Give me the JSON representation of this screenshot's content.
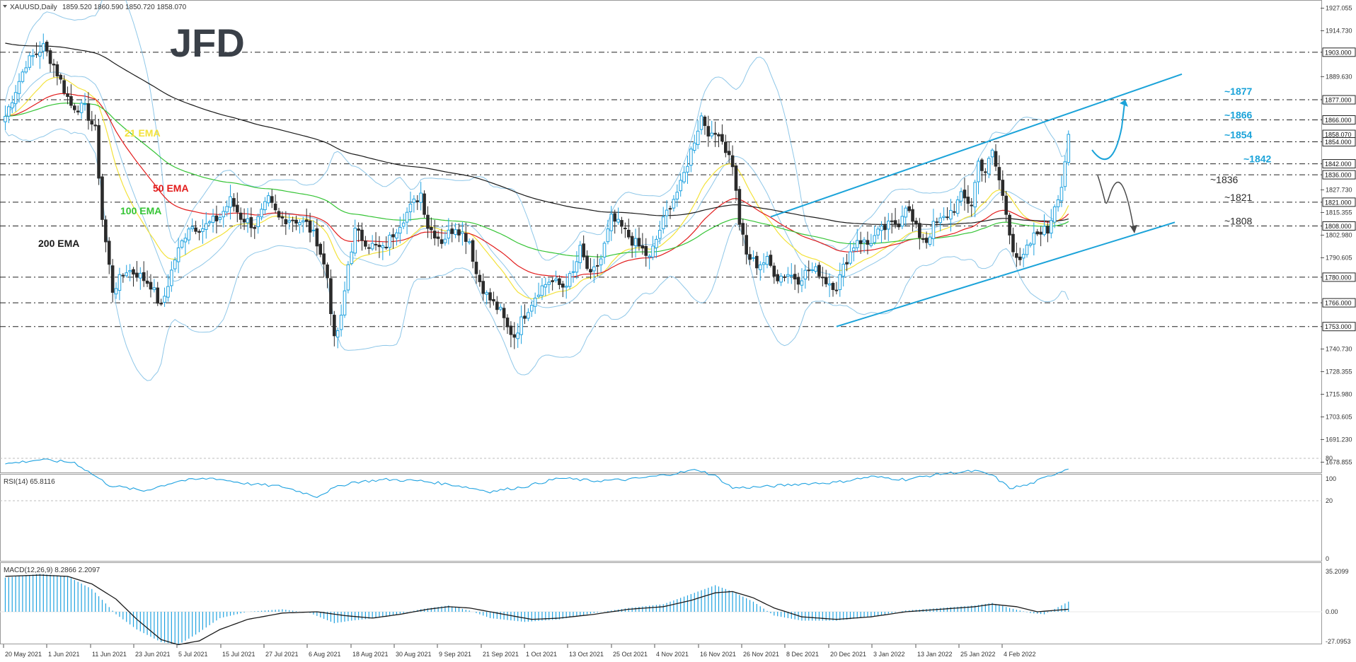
{
  "header": {
    "symbol_line": "XAUUSD,Daily",
    "ohlc": "1859.520 1860.590 1850.720 1858.070",
    "logo": "JFD"
  },
  "colors": {
    "bull": "#1fa2e0",
    "bear": "#2b2b2b",
    "ema21": "#f3e23a",
    "ema50": "#e21b1b",
    "ema100": "#35c435",
    "ema200": "#1a1a1a",
    "bollinger": "#8fc7e8",
    "channel": "#1ba3d9",
    "level_cyan": "#1ba3d9",
    "level_dark": "#2b2b2b"
  },
  "chart_data": [
    {
      "type": "candlestick",
      "symbol": "XAUUSD",
      "timeframe": "Daily",
      "ylim": [
        1674,
        1930
      ],
      "y_ticks": [
        1927.055,
        1914.73,
        1889.63,
        1827.73,
        1815.355,
        1802.98,
        1790.605,
        1740.73,
        1728.355,
        1715.98,
        1703.605,
        1691.23,
        1678.855
      ],
      "y_tick_labels": [
        "1927.055",
        "1914.730",
        "1889.630",
        "1827.730",
        "1815.355",
        "1802.980",
        "1790.605",
        "1740.730",
        "1728.355",
        "1715.980",
        "1703.605",
        "1691.230",
        "1678.855"
      ],
      "x_labels": [
        "20 May 2021",
        "1 Jun 2021",
        "11 Jun 2021",
        "23 Jun 2021",
        "5 Jul 2021",
        "15 Jul 2021",
        "27 Jul 2021",
        "6 Aug 2021",
        "18 Aug 2021",
        "30 Aug 2021",
        "9 Sep 2021",
        "21 Sep 2021",
        "1 Oct 2021",
        "13 Oct 2021",
        "25 Oct 2021",
        "4 Nov 2021",
        "16 Nov 2021",
        "26 Nov 2021",
        "8 Dec 2021",
        "20 Dec 2021",
        "3 Jan 2022",
        "13 Jan 2022",
        "25 Jan 2022",
        "4 Feb 2022"
      ],
      "path_anchors": [
        [
          0,
          1868
        ],
        [
          6,
          1897
        ],
        [
          11,
          1906
        ],
        [
          14,
          1896
        ],
        [
          19,
          1874
        ],
        [
          23,
          1872
        ],
        [
          26,
          1860
        ],
        [
          28,
          1812
        ],
        [
          31,
          1773
        ],
        [
          35,
          1784
        ],
        [
          38,
          1782
        ],
        [
          42,
          1776
        ],
        [
          45,
          1763
        ],
        [
          49,
          1790
        ],
        [
          53,
          1808
        ],
        [
          57,
          1807
        ],
        [
          62,
          1813
        ],
        [
          65,
          1822
        ],
        [
          68,
          1813
        ],
        [
          72,
          1808
        ],
        [
          76,
          1822
        ],
        [
          79,
          1812
        ],
        [
          83,
          1812
        ],
        [
          87,
          1809
        ],
        [
          90,
          1800
        ],
        [
          93,
          1780
        ],
        [
          95,
          1745
        ],
        [
          97,
          1757
        ],
        [
          99,
          1787
        ],
        [
          101,
          1805
        ],
        [
          105,
          1798
        ],
        [
          109,
          1795
        ],
        [
          113,
          1807
        ],
        [
          117,
          1818
        ],
        [
          120,
          1826
        ],
        [
          122,
          1808
        ],
        [
          126,
          1800
        ],
        [
          130,
          1808
        ],
        [
          134,
          1800
        ],
        [
          136,
          1782
        ],
        [
          139,
          1770
        ],
        [
          143,
          1761
        ],
        [
          145,
          1752
        ],
        [
          147,
          1748
        ],
        [
          150,
          1760
        ],
        [
          154,
          1773
        ],
        [
          157,
          1778
        ],
        [
          161,
          1775
        ],
        [
          164,
          1782
        ],
        [
          166,
          1795
        ],
        [
          169,
          1780
        ],
        [
          172,
          1790
        ],
        [
          175,
          1812
        ],
        [
          178,
          1807
        ],
        [
          181,
          1800
        ],
        [
          184,
          1795
        ],
        [
          186,
          1790
        ],
        [
          189,
          1806
        ],
        [
          192,
          1820
        ],
        [
          195,
          1830
        ],
        [
          198,
          1849
        ],
        [
          201,
          1868
        ],
        [
          204,
          1856
        ],
        [
          206,
          1860
        ],
        [
          208,
          1850
        ],
        [
          210,
          1842
        ],
        [
          212,
          1810
        ],
        [
          214,
          1792
        ],
        [
          217,
          1787
        ],
        [
          220,
          1789
        ],
        [
          223,
          1780
        ],
        [
          226,
          1782
        ],
        [
          229,
          1779
        ],
        [
          232,
          1784
        ],
        [
          235,
          1783
        ],
        [
          237,
          1778
        ],
        [
          240,
          1775
        ],
        [
          243,
          1790
        ],
        [
          246,
          1801
        ],
        [
          249,
          1798
        ],
        [
          252,
          1804
        ],
        [
          255,
          1808
        ],
        [
          258,
          1810
        ],
        [
          260,
          1820
        ],
        [
          262,
          1810
        ],
        [
          264,
          1803
        ],
        [
          266,
          1800
        ],
        [
          268,
          1808
        ],
        [
          271,
          1812
        ],
        [
          274,
          1818
        ],
        [
          276,
          1824
        ],
        [
          279,
          1820
        ],
        [
          281,
          1843
        ],
        [
          283,
          1838
        ],
        [
          285,
          1848
        ],
        [
          287,
          1833
        ],
        [
          289,
          1815
        ],
        [
          291,
          1796
        ],
        [
          293,
          1787
        ],
        [
          295,
          1795
        ],
        [
          297,
          1802
        ],
        [
          299,
          1806
        ],
        [
          301,
          1805
        ],
        [
          303,
          1820
        ],
        [
          305,
          1830
        ],
        [
          307,
          1858
        ]
      ],
      "channel": {
        "upper": [
          [
            "21 Nov 2021",
            1813
          ],
          [
            "end",
            1891
          ]
        ],
        "lower": [
          [
            "13 Dec 2021",
            1753
          ],
          [
            "end",
            1810
          ]
        ]
      },
      "horizontal_levels": [
        1903,
        1877,
        1866,
        1858.07,
        1854,
        1842,
        1836,
        1821,
        1808,
        1780,
        1766,
        1753
      ],
      "level_labels": [
        {
          "text": "~1877",
          "value": 1877,
          "style": "cyan"
        },
        {
          "text": "~1866",
          "value": 1866,
          "style": "cyan"
        },
        {
          "text": "~1854",
          "value": 1854,
          "style": "cyan"
        },
        {
          "text": "~1842",
          "value": 1842,
          "style": "cyan"
        },
        {
          "text": "~1836",
          "value": 1836,
          "style": "dark"
        },
        {
          "text": "~1821",
          "value": 1821,
          "style": "dark"
        },
        {
          "text": "~1808",
          "value": 1808,
          "style": "dark"
        }
      ],
      "price_boxes": [
        {
          "text": "1903.000",
          "value": 1903
        },
        {
          "text": "1877.000",
          "value": 1877
        },
        {
          "text": "1866.000",
          "value": 1866
        },
        {
          "text": "1858.070",
          "value": 1858.07
        },
        {
          "text": "1854.000",
          "value": 1854
        },
        {
          "text": "1842.000",
          "value": 1842
        },
        {
          "text": "1836.000",
          "value": 1836
        },
        {
          "text": "1821.000",
          "value": 1821
        },
        {
          "text": "1808.000",
          "value": 1808
        },
        {
          "text": "1780.000",
          "value": 1780
        },
        {
          "text": "1766.000",
          "value": 1766
        },
        {
          "text": "1753.000",
          "value": 1753
        }
      ],
      "indicators": [
        {
          "name": "21 EMA",
          "period": 21
        },
        {
          "name": "50 EMA",
          "period": 50
        },
        {
          "name": "100 EMA",
          "period": 100
        },
        {
          "name": "200 EMA",
          "period": 200
        },
        {
          "name": "Bollinger",
          "period": 20
        }
      ],
      "scenarios": [
        {
          "direction": "up",
          "target": 1877
        },
        {
          "direction": "down",
          "via": 1821,
          "target": 1808
        }
      ]
    },
    {
      "type": "line",
      "name": "RSI(14)",
      "title": "RSI(14) 65.8116",
      "current": 65.8116,
      "ylim": [
        0,
        100
      ],
      "y_ticks": [
        100,
        80,
        20,
        0
      ],
      "levels": [
        80,
        20
      ],
      "path_anchors": [
        [
          0,
          72
        ],
        [
          10,
          78
        ],
        [
          20,
          74
        ],
        [
          30,
          42
        ],
        [
          40,
          34
        ],
        [
          50,
          48
        ],
        [
          60,
          52
        ],
        [
          70,
          44
        ],
        [
          80,
          40
        ],
        [
          90,
          26
        ],
        [
          95,
          38
        ],
        [
          100,
          46
        ],
        [
          110,
          50
        ],
        [
          120,
          48
        ],
        [
          130,
          42
        ],
        [
          140,
          33
        ],
        [
          150,
          40
        ],
        [
          160,
          52
        ],
        [
          170,
          48
        ],
        [
          180,
          50
        ],
        [
          190,
          56
        ],
        [
          200,
          64
        ],
        [
          205,
          55
        ],
        [
          210,
          38
        ],
        [
          220,
          40
        ],
        [
          230,
          44
        ],
        [
          240,
          46
        ],
        [
          250,
          54
        ],
        [
          260,
          50
        ],
        [
          270,
          58
        ],
        [
          280,
          62
        ],
        [
          285,
          56
        ],
        [
          290,
          38
        ],
        [
          295,
          42
        ],
        [
          300,
          52
        ],
        [
          307,
          66
        ]
      ]
    },
    {
      "type": "bar",
      "name": "MACD",
      "title": "MACD(12,26,9) 8.2866 2.2097",
      "macd": 8.2866,
      "signal": 2.2097,
      "ylim": [
        -27.0953,
        35.2099
      ],
      "y_ticks": [
        35.2099,
        0.0,
        -27.0953
      ],
      "y_tick_labels": [
        "35.2099",
        "0.00",
        "-27.0953"
      ],
      "path_anchors": [
        [
          0,
          27
        ],
        [
          10,
          30
        ],
        [
          18,
          28
        ],
        [
          25,
          18
        ],
        [
          32,
          -2
        ],
        [
          38,
          -14
        ],
        [
          45,
          -24
        ],
        [
          50,
          -26
        ],
        [
          55,
          -18
        ],
        [
          62,
          -5
        ],
        [
          70,
          0
        ],
        [
          80,
          2
        ],
        [
          88,
          -1
        ],
        [
          95,
          -9
        ],
        [
          100,
          -7
        ],
        [
          110,
          -4
        ],
        [
          120,
          2
        ],
        [
          128,
          5
        ],
        [
          134,
          1
        ],
        [
          140,
          -5
        ],
        [
          150,
          -8
        ],
        [
          160,
          -6
        ],
        [
          170,
          -1
        ],
        [
          180,
          3
        ],
        [
          190,
          6
        ],
        [
          198,
          14
        ],
        [
          205,
          21
        ],
        [
          210,
          16
        ],
        [
          216,
          8
        ],
        [
          222,
          -3
        ],
        [
          230,
          -7
        ],
        [
          240,
          -7
        ],
        [
          250,
          -4
        ],
        [
          260,
          1
        ],
        [
          270,
          3
        ],
        [
          280,
          5
        ],
        [
          285,
          7
        ],
        [
          290,
          3
        ],
        [
          296,
          -1
        ],
        [
          300,
          -2
        ],
        [
          307,
          8
        ]
      ],
      "signal_anchors": [
        [
          0,
          28
        ],
        [
          10,
          29
        ],
        [
          18,
          28
        ],
        [
          25,
          22
        ],
        [
          32,
          10
        ],
        [
          38,
          -6
        ],
        [
          45,
          -22
        ],
        [
          50,
          -26
        ],
        [
          56,
          -23
        ],
        [
          62,
          -14
        ],
        [
          70,
          -6
        ],
        [
          80,
          -1
        ],
        [
          90,
          0
        ],
        [
          98,
          -3
        ],
        [
          106,
          -5
        ],
        [
          114,
          -2
        ],
        [
          122,
          2
        ],
        [
          128,
          4
        ],
        [
          134,
          3
        ],
        [
          142,
          -1
        ],
        [
          152,
          -6
        ],
        [
          160,
          -5
        ],
        [
          170,
          -2
        ],
        [
          180,
          2
        ],
        [
          190,
          4
        ],
        [
          198,
          9
        ],
        [
          205,
          15
        ],
        [
          210,
          16
        ],
        [
          216,
          11
        ],
        [
          222,
          3
        ],
        [
          230,
          -4
        ],
        [
          240,
          -6
        ],
        [
          250,
          -4
        ],
        [
          260,
          0
        ],
        [
          270,
          2
        ],
        [
          280,
          4
        ],
        [
          285,
          6
        ],
        [
          292,
          4
        ],
        [
          298,
          0
        ],
        [
          307,
          2
        ]
      ]
    }
  ]
}
